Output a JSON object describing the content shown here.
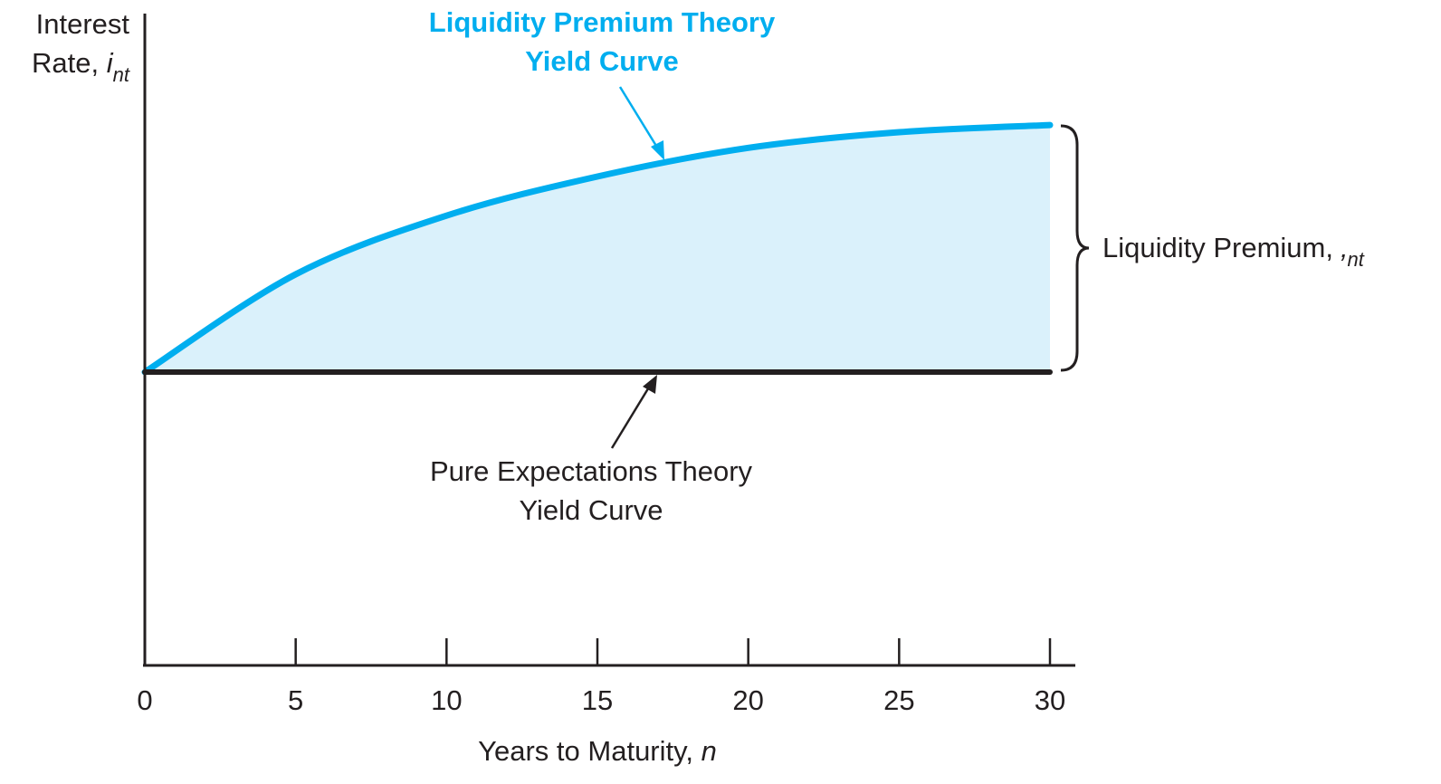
{
  "chart_data": {
    "type": "line",
    "ylabel": {
      "line1": "Interest",
      "line2": "Rate, ",
      "var": "i",
      "sub": "nt"
    },
    "xlabel": {
      "text": "Years to Maturity, ",
      "var": "n"
    },
    "x": [
      0,
      5,
      10,
      15,
      20,
      25,
      30
    ],
    "xlim": [
      0,
      30
    ],
    "xticks": [
      0,
      5,
      10,
      15,
      20,
      25,
      30
    ],
    "ylim": [
      0,
      100
    ],
    "series": [
      {
        "name": "Liquidity Premium Theory Yield Curve",
        "color": "#00aeef",
        "values": [
          45,
          60,
          69,
          75,
          79.4,
          81.8,
          82.9
        ]
      },
      {
        "name": "Pure Expectations Theory Yield Curve",
        "color": "#231f20",
        "values": [
          45,
          45,
          45,
          45,
          45,
          45,
          45
        ]
      }
    ],
    "fill_color": "#daf1fb",
    "annotations": {
      "lpt_line1": "Liquidity Premium Theory",
      "lpt_line2": "Yield Curve",
      "pet_line1": "Pure Expectations Theory",
      "pet_line2": "Yield Curve",
      "premium": "Liquidity Premium, ",
      "premium_var": "‚",
      "premium_sub": "nt"
    }
  }
}
